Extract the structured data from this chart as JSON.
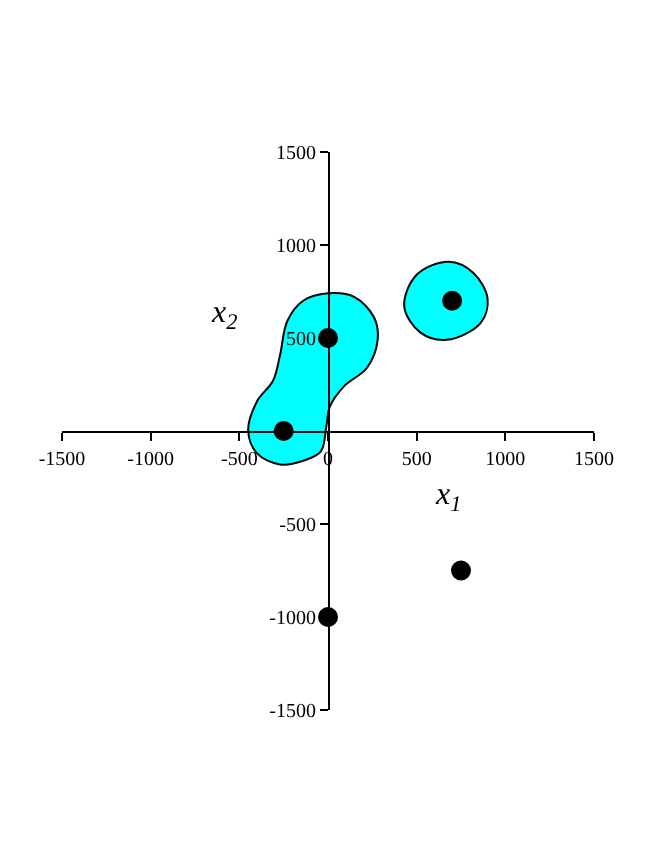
{
  "chart_data": {
    "type": "scatter",
    "xlabel": "x$_{1}$",
    "ylabel": "x$_{2}$",
    "xlim": [
      -1500,
      1500
    ],
    "ylim": [
      -1500,
      1500
    ],
    "xticks": [
      -1500,
      -1000,
      -500,
      0,
      500,
      1000,
      1500
    ],
    "yticks": [
      -1500,
      -1000,
      -500,
      500,
      1000,
      1500
    ],
    "series": [
      {
        "type": "area",
        "color": "#00ffff",
        "x": [
          0,
          150,
          260,
          280,
          220,
          90,
          10,
          -10,
          -40,
          -140,
          -270,
          -400,
          -450,
          -400,
          -310,
          -270,
          -230,
          -140,
          0
        ],
        "values": [
          740,
          720,
          610,
          490,
          340,
          240,
          130,
          20,
          -110,
          -160,
          -180,
          -120,
          0,
          160,
          270,
          410,
          590,
          700,
          740
        ]
      },
      {
        "type": "area",
        "color": "#00ffff",
        "x": [
          680,
          820,
          900,
          860,
          670,
          520,
          430,
          500,
          680
        ],
        "values": [
          910,
          850,
          710,
          580,
          490,
          530,
          670,
          840,
          910
        ]
      },
      {
        "color": "#000000",
        "marker": "circle",
        "x": [
          -250,
          0,
          700,
          750,
          0
        ],
        "values": [
          0,
          500,
          700,
          -750,
          -1000
        ]
      }
    ]
  }
}
